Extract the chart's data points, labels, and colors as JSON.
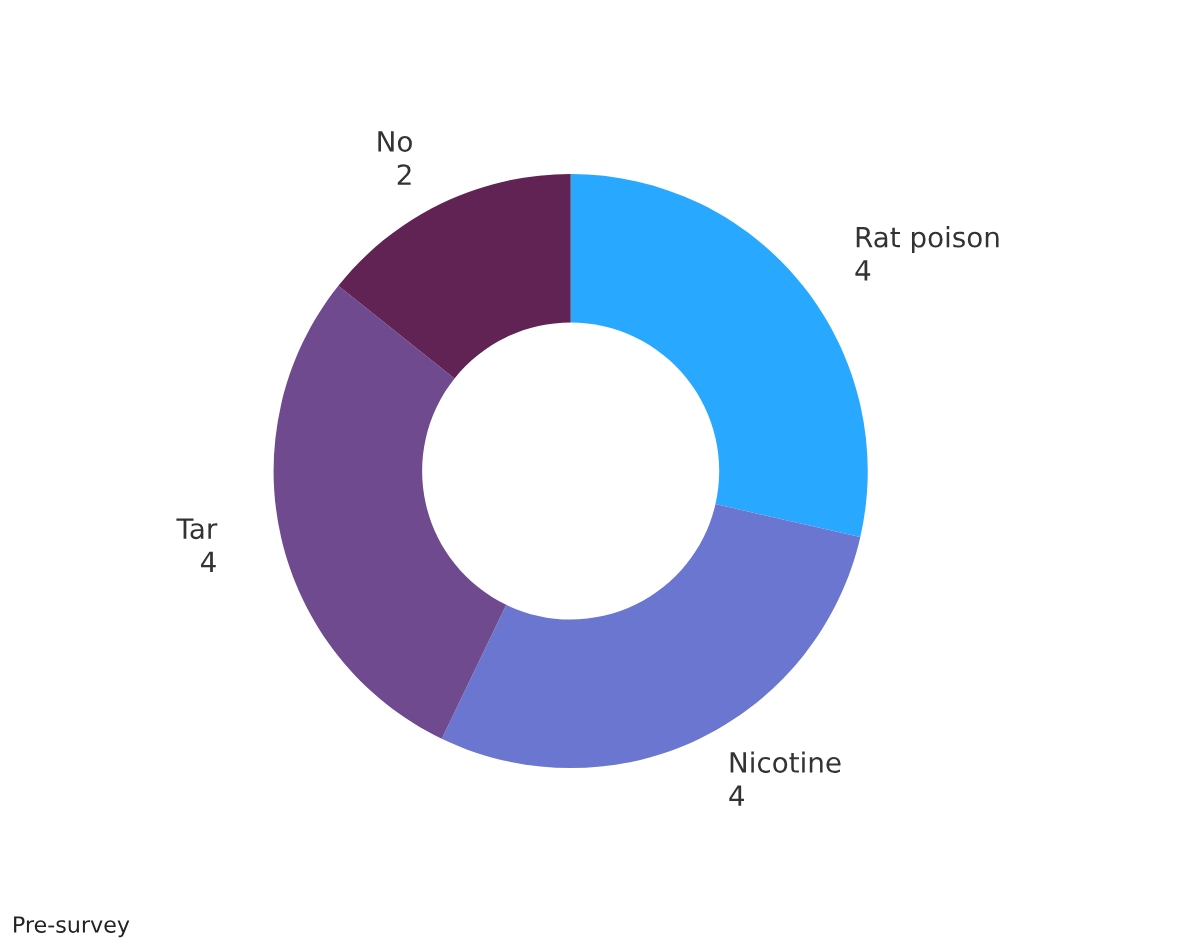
{
  "chart_data": {
    "type": "donut",
    "categories": [
      "Rat poison",
      "Nicotine",
      "Tar",
      "No"
    ],
    "values": [
      4,
      4,
      4,
      2
    ],
    "colors": [
      "#29a8ff",
      "#6a76d0",
      "#704a8e",
      "#612254"
    ],
    "data_labels": true,
    "legend": false,
    "annotations": [
      "Pre-survey"
    ]
  }
}
